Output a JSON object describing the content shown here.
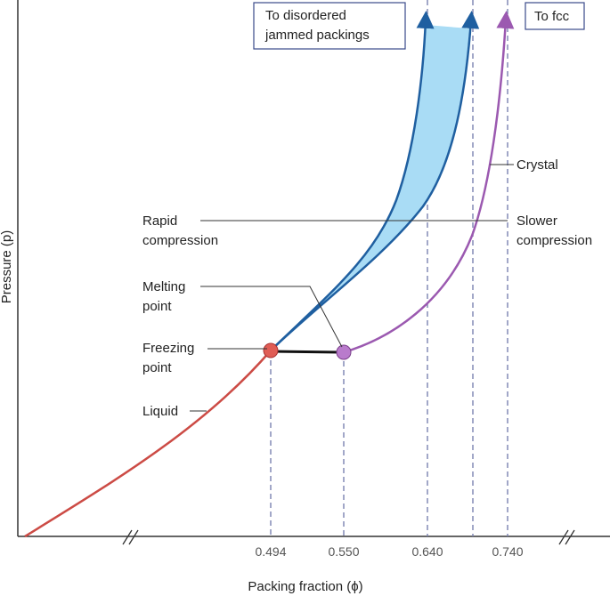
{
  "axes": {
    "x_label": "Packing fraction (ϕ)",
    "y_label": "Pressure (p)",
    "x_ticks": [
      "0.494",
      "0.550",
      "0.640",
      "0.740"
    ]
  },
  "boxes": {
    "disordered": [
      "To disordered",
      "jammed packings"
    ],
    "fcc": "To fcc"
  },
  "labels": {
    "rapid": [
      "Rapid",
      "compression"
    ],
    "slower": [
      "Slower",
      "compression"
    ],
    "melting": [
      "Melting",
      "point"
    ],
    "freezing": [
      "Freezing",
      "point"
    ],
    "liquid": "Liquid",
    "crystal": "Crystal"
  }
}
